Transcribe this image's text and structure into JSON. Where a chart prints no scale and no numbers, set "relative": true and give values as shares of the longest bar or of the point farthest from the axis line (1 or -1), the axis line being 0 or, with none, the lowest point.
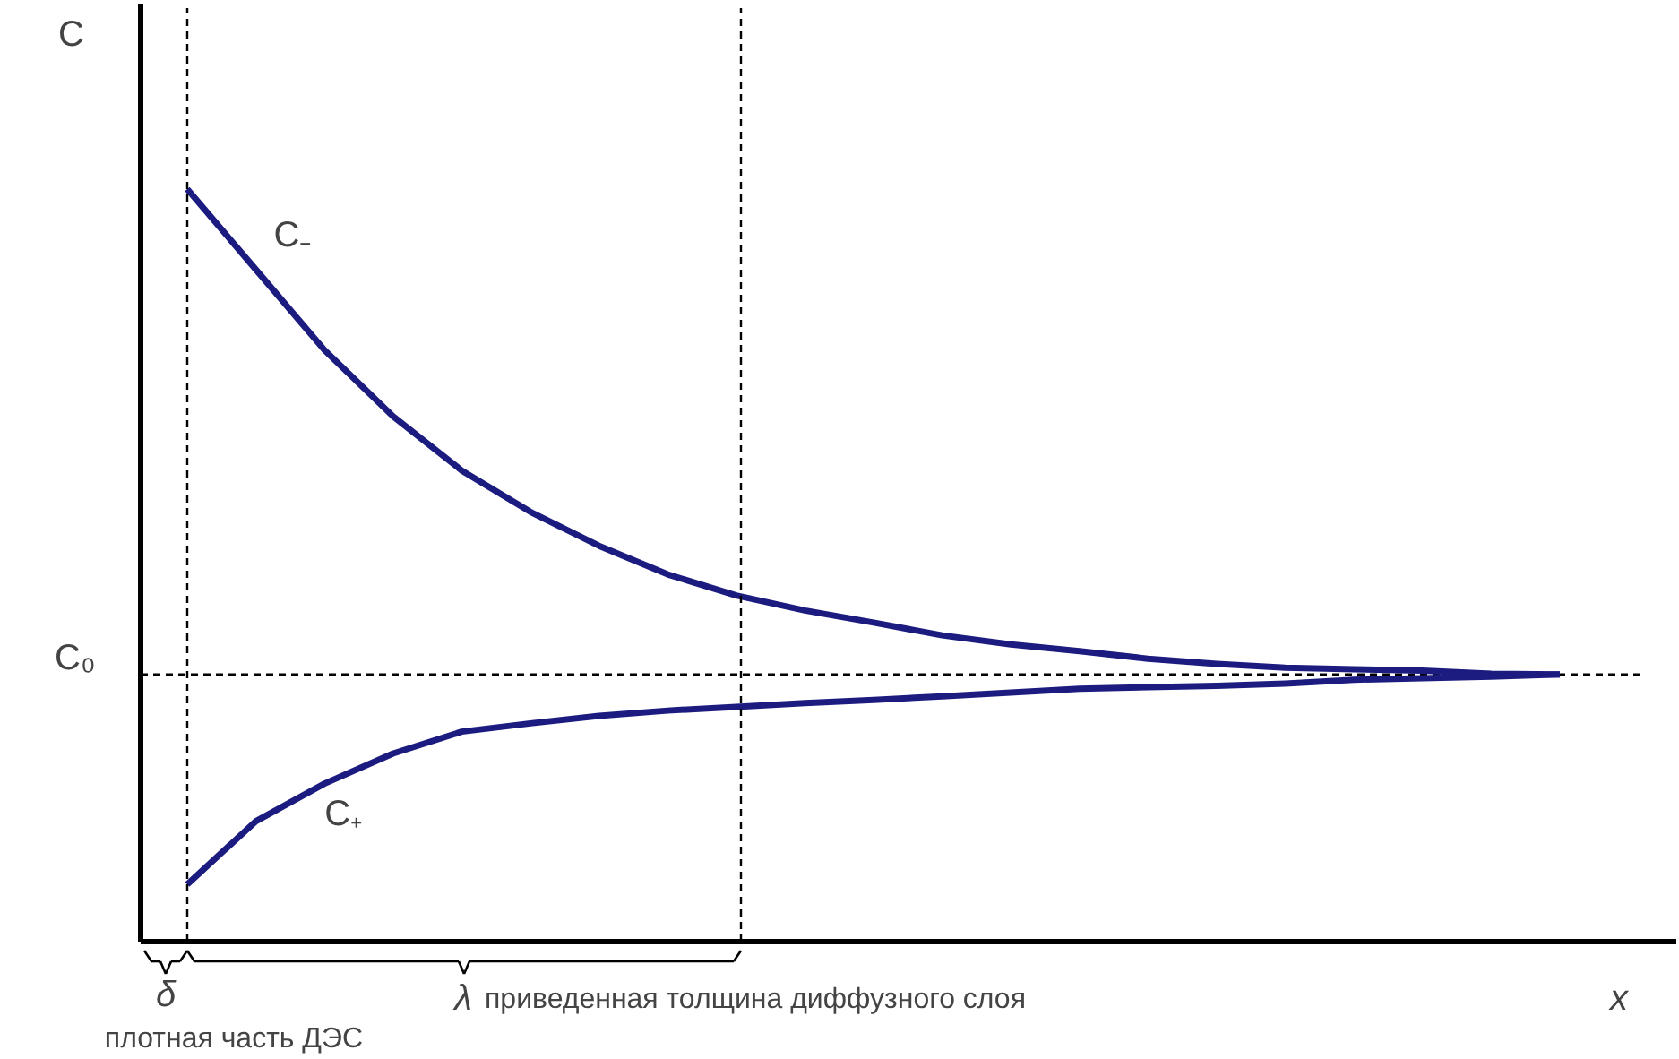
{
  "chart_data": {
    "type": "line",
    "relative": true,
    "ylabel": "C",
    "xlabel": "x",
    "legend": false,
    "grid": false,
    "marker": "none",
    "line_style": "solid",
    "categories": [
      null,
      null,
      null,
      null,
      null,
      null,
      null,
      null,
      null,
      null,
      null,
      null,
      null,
      null,
      null,
      null,
      null,
      null,
      null,
      null,
      null
    ],
    "series": [
      {
        "name": "C₋",
        "color": "#1c1c80",
        "values": [
          1.0,
          0.893,
          0.786,
          0.698,
          0.626,
          0.571,
          0.526,
          0.488,
          0.46,
          0.44,
          0.424,
          0.407,
          0.395,
          0.386,
          0.376,
          0.369,
          0.364,
          0.362,
          0.36,
          0.356,
          0.355
        ]
      },
      {
        "name": "C₊",
        "color": "#1c1c80",
        "values": [
          0.076,
          0.16,
          0.21,
          0.25,
          0.279,
          0.29,
          0.3,
          0.307,
          0.312,
          0.317,
          0.321,
          0.326,
          0.331,
          0.336,
          0.338,
          0.34,
          0.343,
          0.348,
          0.35,
          0.352,
          0.355
        ]
      }
    ],
    "ref_lines": [
      {
        "axis": "y",
        "value": 0.355,
        "label": "C₀",
        "line_style": "dashed",
        "color": "#000000"
      }
    ],
    "annotations": [
      "δ",
      "λ",
      "плотная часть ДЭС",
      "приведенная толщина диффузного слоя"
    ]
  }
}
